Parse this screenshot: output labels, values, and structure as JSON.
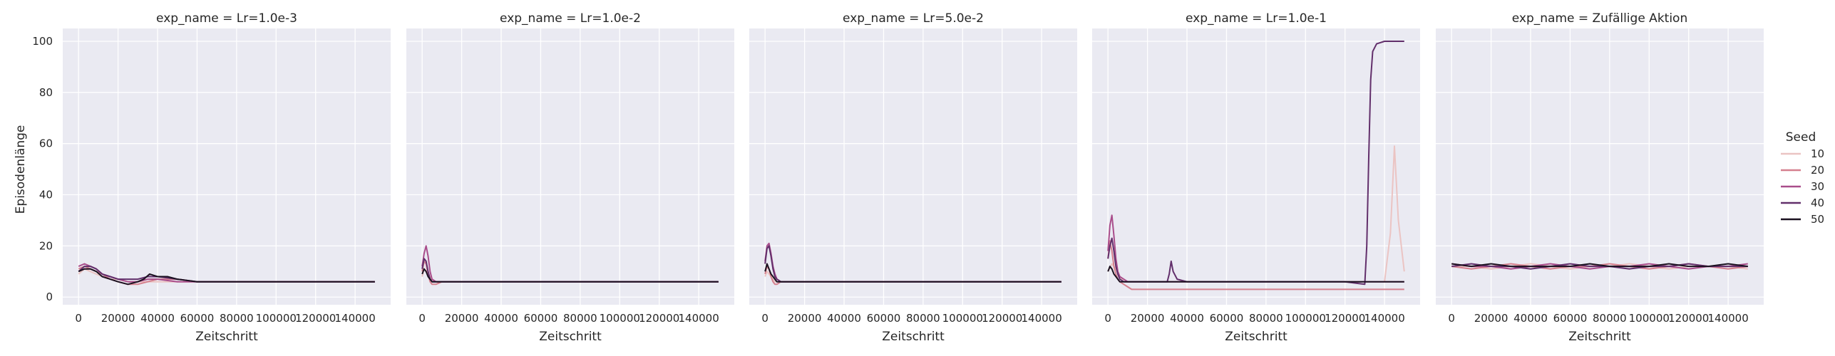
{
  "chart_data": {
    "type": "line",
    "y_label": "Episodenlänge",
    "x_label": "Zeitschritt",
    "x_ticks": [
      0,
      20000,
      40000,
      60000,
      80000,
      100000,
      120000,
      140000
    ],
    "y_ticks": [
      0,
      20,
      40,
      60,
      80,
      100
    ],
    "xlim": [
      -8000,
      158000
    ],
    "ylim": [
      -3,
      105
    ],
    "grid": true,
    "legend": {
      "title": "Seed",
      "placement": "right",
      "entries": [
        "10",
        "20",
        "30",
        "40",
        "50"
      ],
      "colors": [
        "#ebc4c3",
        "#d5808e",
        "#a94d8b",
        "#622f6b",
        "#1b1120"
      ]
    },
    "panels": [
      {
        "title": "exp_name = Lr=1.0e-3",
        "series": [
          {
            "name": "10",
            "x": [
              0,
              3000,
              6000,
              9000,
              12000,
              16000,
              20000,
              25000,
              30000,
              35000,
              40000,
              50000,
              60000,
              80000,
              100000,
              120000,
              150000
            ],
            "y": [
              9,
              11,
              10,
              9,
              8,
              7,
              7,
              6,
              6,
              6,
              6,
              6,
              6,
              6,
              6,
              6,
              6
            ]
          },
          {
            "name": "20",
            "x": [
              0,
              3000,
              6000,
              9000,
              12000,
              16000,
              20000,
              25000,
              30000,
              35000,
              40000,
              50000,
              60000,
              80000,
              100000,
              120000,
              150000
            ],
            "y": [
              11,
              12,
              11,
              10,
              9,
              7,
              6,
              5,
              5,
              6,
              7,
              7,
              6,
              6,
              6,
              6,
              6
            ]
          },
          {
            "name": "30",
            "x": [
              0,
              3000,
              6000,
              9000,
              12000,
              16000,
              20000,
              25000,
              30000,
              35000,
              40000,
              50000,
              60000,
              80000,
              100000,
              120000,
              150000
            ],
            "y": [
              12,
              13,
              12,
              11,
              9,
              8,
              7,
              6,
              6,
              7,
              7,
              6,
              6,
              6,
              6,
              6,
              6
            ]
          },
          {
            "name": "40",
            "x": [
              0,
              3000,
              6000,
              9000,
              12000,
              16000,
              20000,
              25000,
              30000,
              35000,
              40000,
              50000,
              60000,
              80000,
              100000,
              120000,
              150000
            ],
            "y": [
              10,
              12,
              12,
              11,
              9,
              8,
              7,
              7,
              7,
              8,
              8,
              7,
              6,
              6,
              6,
              6,
              6
            ]
          },
          {
            "name": "50",
            "x": [
              0,
              3000,
              6000,
              9000,
              12000,
              16000,
              20000,
              25000,
              30000,
              33000,
              36000,
              40000,
              45000,
              50000,
              60000,
              80000,
              100000,
              120000,
              150000
            ],
            "y": [
              10,
              11,
              11,
              10,
              8,
              7,
              6,
              5,
              6,
              7,
              9,
              8,
              8,
              7,
              6,
              6,
              6,
              6,
              6
            ]
          }
        ]
      },
      {
        "title": "exp_name = Lr=1.0e-2",
        "series": [
          {
            "name": "10",
            "x": [
              0,
              1000,
              2000,
              3000,
              4000,
              5000,
              7000,
              10000,
              20000,
              60000,
              100000,
              150000
            ],
            "y": [
              8,
              11,
              10,
              9,
              8,
              6,
              6,
              6,
              6,
              6,
              6,
              6
            ]
          },
          {
            "name": "20",
            "x": [
              0,
              1000,
              2000,
              3000,
              4000,
              5000,
              7000,
              10000,
              20000,
              60000,
              100000,
              150000
            ],
            "y": [
              10,
              14,
              13,
              9,
              6,
              5,
              5,
              6,
              6,
              6,
              6,
              6
            ]
          },
          {
            "name": "30",
            "x": [
              0,
              1000,
              2000,
              3000,
              4000,
              5000,
              7000,
              10000,
              20000,
              60000,
              100000,
              150000
            ],
            "y": [
              12,
              17,
              20,
              16,
              10,
              7,
              6,
              6,
              6,
              6,
              6,
              6
            ]
          },
          {
            "name": "40",
            "x": [
              0,
              1000,
              2000,
              3000,
              4000,
              5000,
              7000,
              10000,
              20000,
              60000,
              100000,
              150000
            ],
            "y": [
              11,
              15,
              14,
              10,
              7,
              6,
              6,
              6,
              6,
              6,
              6,
              6
            ]
          },
          {
            "name": "50",
            "x": [
              0,
              1000,
              2000,
              3000,
              4000,
              5000,
              7000,
              10000,
              20000,
              60000,
              100000,
              150000
            ],
            "y": [
              9,
              11,
              10,
              8,
              7,
              6,
              6,
              6,
              6,
              6,
              6,
              6
            ]
          }
        ]
      },
      {
        "title": "exp_name = Lr=5.0e-2",
        "series": [
          {
            "name": "10",
            "x": [
              0,
              1000,
              2000,
              3000,
              4000,
              5000,
              6000,
              8000,
              10000,
              20000,
              60000,
              100000,
              150000
            ],
            "y": [
              8,
              10,
              9,
              8,
              7,
              6,
              6,
              6,
              6,
              6,
              6,
              6,
              6
            ]
          },
          {
            "name": "20",
            "x": [
              0,
              1000,
              2000,
              3000,
              4000,
              5000,
              6000,
              8000,
              10000,
              20000,
              60000,
              100000,
              150000
            ],
            "y": [
              9,
              12,
              11,
              8,
              6,
              5,
              5,
              6,
              6,
              6,
              6,
              6,
              6
            ]
          },
          {
            "name": "30",
            "x": [
              0,
              1000,
              2000,
              3000,
              4000,
              5000,
              6000,
              8000,
              10000,
              20000,
              60000,
              100000,
              150000
            ],
            "y": [
              14,
              20,
              21,
              17,
              12,
              9,
              7,
              6,
              6,
              6,
              6,
              6,
              6
            ]
          },
          {
            "name": "40",
            "x": [
              0,
              1000,
              2000,
              3000,
              4000,
              5000,
              6000,
              8000,
              10000,
              20000,
              60000,
              100000,
              150000
            ],
            "y": [
              13,
              19,
              20,
              16,
              11,
              8,
              7,
              6,
              6,
              6,
              6,
              6,
              6
            ]
          },
          {
            "name": "50",
            "x": [
              0,
              1000,
              2000,
              3000,
              4000,
              5000,
              6000,
              8000,
              10000,
              20000,
              60000,
              100000,
              150000
            ],
            "y": [
              10,
              13,
              11,
              9,
              8,
              7,
              6,
              6,
              6,
              6,
              6,
              6,
              6
            ]
          }
        ]
      },
      {
        "title": "exp_name = Lr=1.0e-1",
        "series": [
          {
            "name": "10",
            "x": [
              0,
              2000,
              4000,
              6000,
              8000,
              12000,
              20000,
              60000,
              100000,
              140000,
              143000,
              145000,
              147000,
              150000
            ],
            "y": [
              10,
              13,
              11,
              8,
              6,
              6,
              6,
              6,
              6,
              6,
              25,
              59,
              30,
              10
            ]
          },
          {
            "name": "20",
            "x": [
              0,
              1000,
              2000,
              3000,
              4000,
              5000,
              6000,
              8000,
              10000,
              12000,
              20000,
              60000,
              100000,
              150000
            ],
            "y": [
              15,
              22,
              18,
              12,
              9,
              7,
              6,
              5,
              4,
              3,
              3,
              3,
              3,
              3
            ]
          },
          {
            "name": "30",
            "x": [
              0,
              1000,
              2000,
              3000,
              4000,
              5000,
              6000,
              8000,
              10000,
              20000,
              60000,
              100000,
              150000
            ],
            "y": [
              18,
              28,
              32,
              24,
              15,
              10,
              8,
              7,
              6,
              6,
              6,
              6,
              6
            ]
          },
          {
            "name": "40",
            "x": [
              0,
              1000,
              2000,
              3000,
              4000,
              5000,
              6000,
              8000,
              10000,
              20000,
              30000,
              31000,
              32000,
              33000,
              35000,
              40000,
              60000,
              100000,
              120000,
              130000,
              131000,
              132000,
              133000,
              134000,
              136000,
              140000,
              150000
            ],
            "y": [
              15,
              20,
              23,
              18,
              12,
              9,
              7,
              6,
              6,
              6,
              6,
              9,
              14,
              10,
              7,
              6,
              6,
              6,
              6,
              5,
              20,
              55,
              85,
              96,
              99,
              100,
              100
            ]
          },
          {
            "name": "50",
            "x": [
              0,
              1000,
              2000,
              3000,
              4000,
              5000,
              6000,
              8000,
              10000,
              20000,
              60000,
              100000,
              150000
            ],
            "y": [
              10,
              12,
              11,
              9,
              8,
              7,
              6,
              6,
              6,
              6,
              6,
              6,
              6
            ]
          }
        ]
      },
      {
        "title": "exp_name = Zufällige Aktion",
        "series": [
          {
            "name": "10",
            "x": [
              0,
              10000,
              20000,
              30000,
              40000,
              50000,
              60000,
              70000,
              80000,
              90000,
              100000,
              110000,
              120000,
              130000,
              140000,
              150000
            ],
            "y": [
              12,
              12,
              11,
              12,
              13,
              12,
              11,
              12,
              12,
              13,
              12,
              11,
              12,
              12,
              12,
              11
            ]
          },
          {
            "name": "20",
            "x": [
              0,
              10000,
              20000,
              30000,
              40000,
              50000,
              60000,
              70000,
              80000,
              90000,
              100000,
              110000,
              120000,
              130000,
              140000,
              150000
            ],
            "y": [
              12,
              11,
              12,
              13,
              12,
              11,
              12,
              12,
              13,
              12,
              11,
              12,
              13,
              12,
              11,
              12
            ]
          },
          {
            "name": "30",
            "x": [
              0,
              10000,
              20000,
              30000,
              40000,
              50000,
              60000,
              70000,
              80000,
              90000,
              100000,
              110000,
              120000,
              130000,
              140000,
              150000
            ],
            "y": [
              13,
              12,
              12,
              11,
              12,
              13,
              12,
              11,
              12,
              12,
              13,
              12,
              11,
              12,
              12,
              13
            ]
          },
          {
            "name": "40",
            "x": [
              0,
              10000,
              20000,
              30000,
              40000,
              50000,
              60000,
              70000,
              80000,
              90000,
              100000,
              110000,
              120000,
              130000,
              140000,
              150000
            ],
            "y": [
              12,
              13,
              12,
              12,
              11,
              12,
              13,
              12,
              12,
              11,
              12,
              12,
              13,
              12,
              12,
              12
            ]
          },
          {
            "name": "50",
            "x": [
              0,
              10000,
              20000,
              30000,
              40000,
              50000,
              60000,
              70000,
              80000,
              90000,
              100000,
              110000,
              120000,
              130000,
              140000,
              150000
            ],
            "y": [
              13,
              12,
              13,
              12,
              12,
              12,
              12,
              13,
              12,
              12,
              12,
              13,
              12,
              12,
              13,
              12
            ]
          }
        ]
      }
    ]
  }
}
